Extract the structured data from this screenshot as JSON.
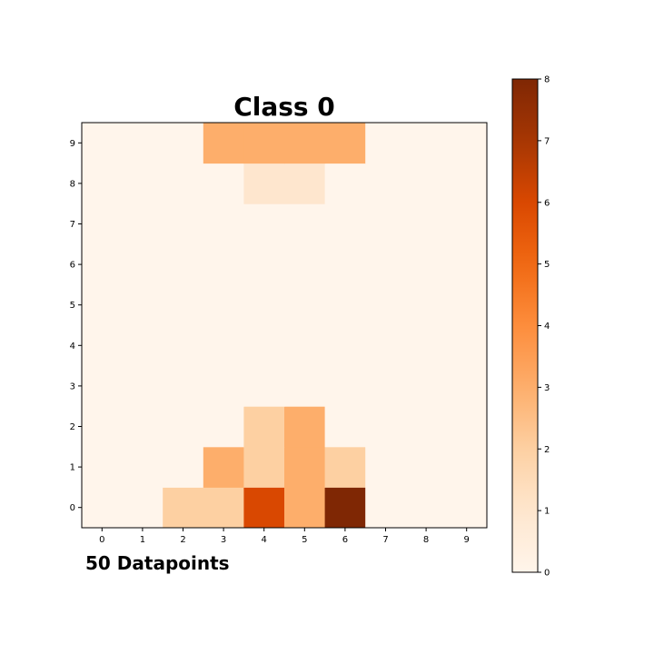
{
  "chart_data": {
    "type": "heatmap",
    "title": "Class 0",
    "annotation": "50 Datapoints",
    "x_ticks": [
      "0",
      "1",
      "2",
      "3",
      "4",
      "5",
      "6",
      "7",
      "8",
      "9"
    ],
    "y_ticks": [
      "0",
      "1",
      "2",
      "3",
      "4",
      "5",
      "6",
      "7",
      "8",
      "9"
    ],
    "xlabel": "",
    "ylabel": "",
    "colormap": "Oranges",
    "colorbar": {
      "min": 0,
      "max": 8,
      "ticks": [
        "0",
        "1",
        "2",
        "3",
        "4",
        "5",
        "6",
        "7",
        "8"
      ]
    },
    "grid": false,
    "matrix_rows_from_y0": [
      [
        0,
        0,
        2,
        2,
        6,
        3,
        8,
        0,
        0,
        0
      ],
      [
        0,
        0,
        0,
        3,
        2,
        3,
        2,
        0,
        0,
        0
      ],
      [
        0,
        0,
        0,
        0,
        2,
        3,
        0,
        0,
        0,
        0
      ],
      [
        0,
        0,
        0,
        0,
        0,
        0,
        0,
        0,
        0,
        0
      ],
      [
        0,
        0,
        0,
        0,
        0,
        0,
        0,
        0,
        0,
        0
      ],
      [
        0,
        0,
        0,
        0,
        0,
        0,
        0,
        0,
        0,
        0
      ],
      [
        0,
        0,
        0,
        0,
        0,
        0,
        0,
        0,
        0,
        0
      ],
      [
        0,
        0,
        0,
        0,
        0,
        0,
        0,
        0,
        0,
        0
      ],
      [
        0,
        0,
        0,
        0,
        1,
        1,
        0,
        0,
        0,
        0
      ],
      [
        0,
        0,
        0,
        3,
        3,
        3,
        3,
        0,
        0,
        0
      ]
    ]
  }
}
